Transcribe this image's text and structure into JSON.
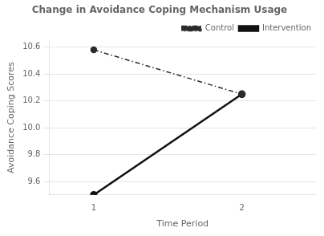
{
  "chart_data": {
    "type": "line",
    "title": "Change in Avoidance Coping Mechanism Usage",
    "xlabel": "Time Period",
    "ylabel": "Avoidance Coping Scores",
    "x": [
      1,
      2
    ],
    "series": [
      {
        "name": "Control",
        "color": "#2b2b2b",
        "values": [
          10.58,
          10.25
        ],
        "line_style": "dashdot",
        "marker": "circle"
      },
      {
        "name": "Intervention",
        "color": "#111111",
        "values": [
          9.5,
          10.25
        ],
        "line_style": "solid",
        "marker": "circle"
      }
    ],
    "xlim": [
      0.7,
      2.5
    ],
    "ylim": [
      9.5,
      10.65
    ],
    "xticks": [
      1,
      2
    ],
    "yticks": [
      9.6,
      9.8,
      {
        "value": 10.0,
        "label": "10.0"
      },
      10.2,
      10.4,
      10.6
    ],
    "grid": "y",
    "legend": "upper right"
  }
}
